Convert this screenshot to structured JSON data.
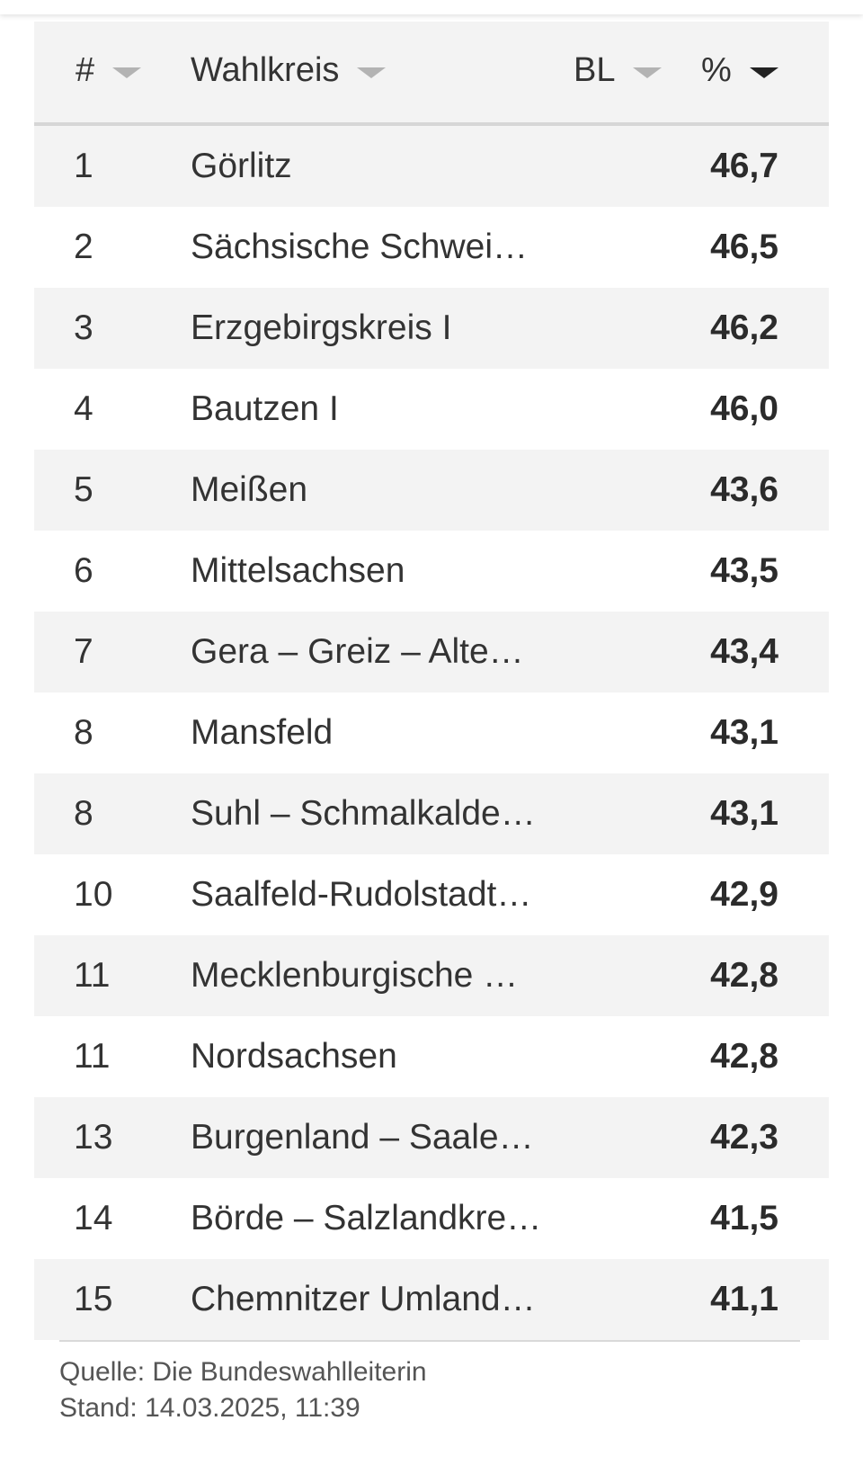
{
  "table": {
    "headers": {
      "rank": "#",
      "name": "Wahlkreis",
      "state": "BL",
      "percent": "%"
    },
    "sort_column": "percent",
    "rows": [
      {
        "rank": "1",
        "name": "Görlitz",
        "percent": "46,7"
      },
      {
        "rank": "2",
        "name": "Sächsische Schwei…",
        "percent": "46,5"
      },
      {
        "rank": "3",
        "name": "Erzgebirgskreis I",
        "percent": "46,2"
      },
      {
        "rank": "4",
        "name": "Bautzen I",
        "percent": "46,0"
      },
      {
        "rank": "5",
        "name": "Meißen",
        "percent": "43,6"
      },
      {
        "rank": "6",
        "name": "Mittelsachsen",
        "percent": "43,5"
      },
      {
        "rank": "7",
        "name": "Gera – Greiz – Alte…",
        "percent": "43,4"
      },
      {
        "rank": "8",
        "name": "Mansfeld",
        "percent": "43,1"
      },
      {
        "rank": "8",
        "name": "Suhl – Schmalkalde…",
        "percent": "43,1"
      },
      {
        "rank": "10",
        "name": "Saalfeld-Rudolstadt…",
        "percent": "42,9"
      },
      {
        "rank": "11",
        "name": "Mecklenburgische …",
        "percent": "42,8"
      },
      {
        "rank": "11",
        "name": "Nordsachsen",
        "percent": "42,8"
      },
      {
        "rank": "13",
        "name": "Burgenland – Saale…",
        "percent": "42,3"
      },
      {
        "rank": "14",
        "name": "Börde – Salzlandkre…",
        "percent": "41,5"
      },
      {
        "rank": "15",
        "name": "Chemnitzer Umland…",
        "percent": "41,1"
      }
    ]
  },
  "footer": {
    "source": "Quelle: Die Bundeswahlleiterin",
    "date": "Stand: 14.03.2025, 11:39"
  },
  "colors": {
    "row_stripe": "#f3f3f3",
    "header_bg": "#f3f3f3",
    "caret_inactive": "#b3b3b3",
    "caret_active": "#222222"
  },
  "icons": {
    "sort_caret": "caret-down-icon"
  }
}
